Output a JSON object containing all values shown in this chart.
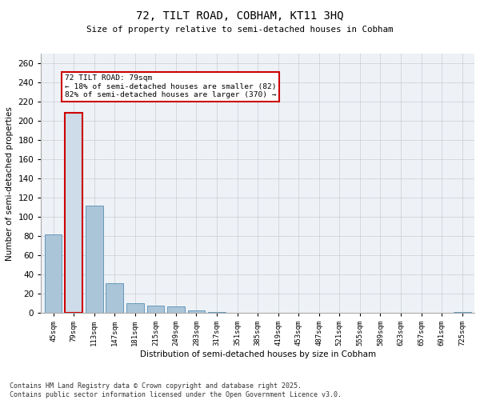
{
  "title1": "72, TILT ROAD, COBHAM, KT11 3HQ",
  "title2": "Size of property relative to semi-detached houses in Cobham",
  "xlabel": "Distribution of semi-detached houses by size in Cobham",
  "ylabel": "Number of semi-detached properties",
  "categories": [
    "45sqm",
    "79sqm",
    "113sqm",
    "147sqm",
    "181sqm",
    "215sqm",
    "249sqm",
    "283sqm",
    "317sqm",
    "351sqm",
    "385sqm",
    "419sqm",
    "453sqm",
    "487sqm",
    "521sqm",
    "555sqm",
    "589sqm",
    "623sqm",
    "657sqm",
    "691sqm",
    "725sqm"
  ],
  "values": [
    82,
    208,
    112,
    31,
    10,
    8,
    7,
    3,
    1,
    0,
    0,
    0,
    0,
    0,
    0,
    0,
    0,
    0,
    0,
    0,
    1
  ],
  "highlight_index": 1,
  "highlight_bar_color": "#cddce8",
  "normal_bar_color": "#aac4d8",
  "highlight_outline_color": "#cc0000",
  "normal_outline_color": "#6699bb",
  "annotation_box_color": "#cc0000",
  "annotation_text": "72 TILT ROAD: 79sqm\n← 18% of semi-detached houses are smaller (82)\n82% of semi-detached houses are larger (370) →",
  "ylim": [
    0,
    270
  ],
  "yticks": [
    0,
    20,
    40,
    60,
    80,
    100,
    120,
    140,
    160,
    180,
    200,
    220,
    240,
    260
  ],
  "footer": "Contains HM Land Registry data © Crown copyright and database right 2025.\nContains public sector information licensed under the Open Government Licence v3.0.",
  "bg_color": "#eef2f7",
  "grid_color": "#cccccc"
}
